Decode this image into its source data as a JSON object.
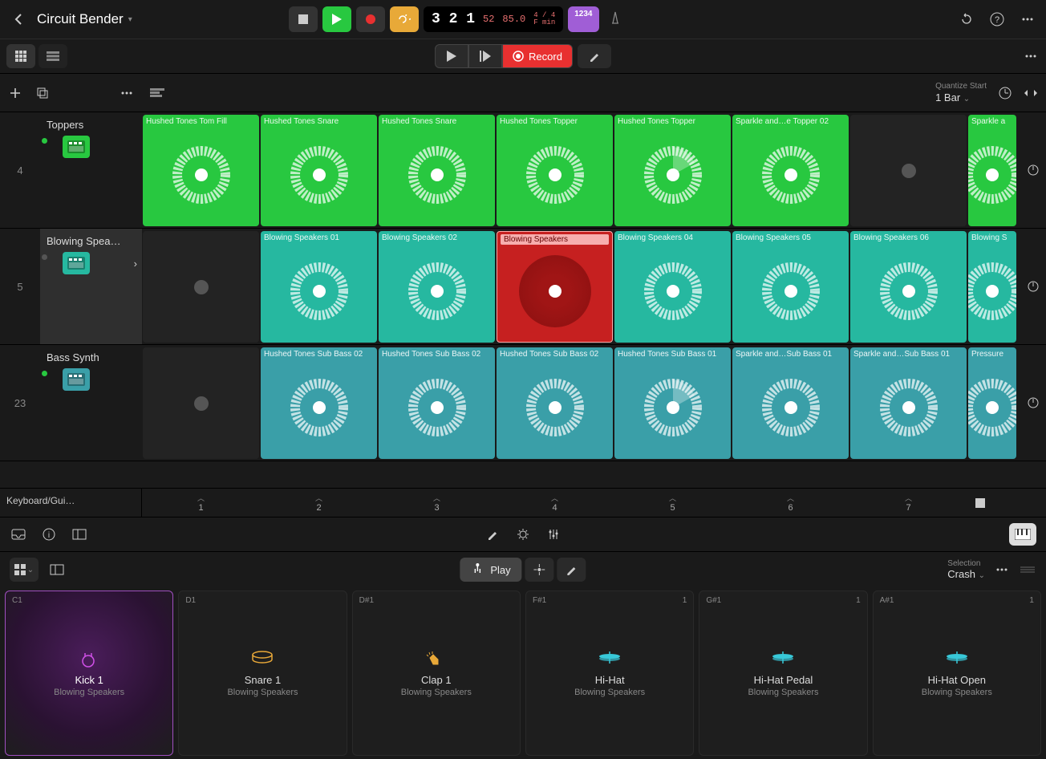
{
  "project": {
    "title": "Circuit Bender"
  },
  "transport": {
    "position": "3 2 1",
    "subpos": "52",
    "tempo": "85.0",
    "timesig": "4 / 4",
    "key": "F min",
    "bars_badge": "1234"
  },
  "secondbar": {
    "record_label": "Record"
  },
  "quantize": {
    "label": "Quantize Start",
    "value": "1 Bar"
  },
  "tracks": [
    {
      "num": "4",
      "name": "Toppers",
      "color": "#28c840",
      "dot": "#28c840",
      "icon_bg": "#28c840",
      "selected": false
    },
    {
      "num": "5",
      "name": "Blowing Spea…",
      "color": "#26b8a0",
      "dot": "#555",
      "icon_bg": "#26b8a0",
      "selected": true,
      "has_arrow": true
    },
    {
      "num": "23",
      "name": "Bass Synth",
      "color": "#3a9fa8",
      "dot": "#28c840",
      "icon_bg": "#3a9fa8",
      "selected": false
    }
  ],
  "keyboard_row": {
    "name": "Keyboard/Gui…"
  },
  "grid_colors": {
    "green": "#28c840",
    "teal": "#26b8a0",
    "teal2": "#3a9fa8",
    "red": "#c62020"
  },
  "rows": [
    {
      "cells": [
        {
          "type": "clip",
          "color": "#28c840",
          "label": "Hushed Tones Tom Fill"
        },
        {
          "type": "clip",
          "color": "#28c840",
          "label": "Hushed Tones Snare"
        },
        {
          "type": "clip",
          "color": "#28c840",
          "label": "Hushed Tones Snare"
        },
        {
          "type": "clip",
          "color": "#28c840",
          "label": "Hushed Tones Topper"
        },
        {
          "type": "clip",
          "color": "#28c840",
          "label": "Hushed Tones Topper",
          "playing": true
        },
        {
          "type": "clip",
          "color": "#28c840",
          "label": "Sparkle and…e Topper 02"
        },
        {
          "type": "empty"
        },
        {
          "type": "clip",
          "color": "#28c840",
          "label": "Sparkle a",
          "partial": true
        }
      ]
    },
    {
      "cells": [
        {
          "type": "empty"
        },
        {
          "type": "clip",
          "color": "#26b8a0",
          "label": "Blowing Speakers 01"
        },
        {
          "type": "clip",
          "color": "#26b8a0",
          "label": "Blowing Speakers 02"
        },
        {
          "type": "recording",
          "label": "Blowing Speakers"
        },
        {
          "type": "clip",
          "color": "#26b8a0",
          "label": "Blowing Speakers 04"
        },
        {
          "type": "clip",
          "color": "#26b8a0",
          "label": "Blowing Speakers 05"
        },
        {
          "type": "clip",
          "color": "#26b8a0",
          "label": "Blowing Speakers 06"
        },
        {
          "type": "clip",
          "color": "#26b8a0",
          "label": "Blowing S",
          "partial": true
        }
      ]
    },
    {
      "cells": [
        {
          "type": "empty"
        },
        {
          "type": "clip",
          "color": "#3a9fa8",
          "label": "Hushed Tones Sub Bass 02"
        },
        {
          "type": "clip",
          "color": "#3a9fa8",
          "label": "Hushed Tones Sub Bass 02"
        },
        {
          "type": "clip",
          "color": "#3a9fa8",
          "label": "Hushed Tones Sub Bass 02"
        },
        {
          "type": "clip",
          "color": "#3a9fa8",
          "label": "Hushed Tones Sub Bass 01",
          "playing": true
        },
        {
          "type": "clip",
          "color": "#3a9fa8",
          "label": "Sparkle and…Sub Bass 01"
        },
        {
          "type": "clip",
          "color": "#3a9fa8",
          "label": "Sparkle and…Sub Bass 01"
        },
        {
          "type": "clip",
          "color": "#3a9fa8",
          "label": "Pressure",
          "partial": true
        }
      ]
    }
  ],
  "scenes": [
    "1",
    "2",
    "3",
    "4",
    "5",
    "6",
    "7"
  ],
  "pads_toolbar": {
    "play_label": "Play",
    "selection_label": "Selection",
    "selection_value": "Crash"
  },
  "pads": [
    {
      "note": "C1",
      "name": "Kick 1",
      "sub": "Blowing Speakers",
      "color": "#d050e8",
      "selected": true,
      "icon": "kick"
    },
    {
      "note": "D1",
      "name": "Snare 1",
      "sub": "Blowing Speakers",
      "color": "#e8a838",
      "icon": "snare"
    },
    {
      "note": "D#1",
      "name": "Clap 1",
      "sub": "Blowing Speakers",
      "color": "#e8a838",
      "icon": "clap"
    },
    {
      "note": "F#1",
      "badge": "1",
      "name": "Hi-Hat",
      "sub": "Blowing Speakers",
      "color": "#38c8d8",
      "icon": "hihat"
    },
    {
      "note": "G#1",
      "badge": "1",
      "name": "Hi-Hat Pedal",
      "sub": "Blowing Speakers",
      "color": "#38c8d8",
      "icon": "hihat"
    },
    {
      "note": "A#1",
      "badge": "1",
      "name": "Hi-Hat Open",
      "sub": "Blowing Speakers",
      "color": "#38c8d8",
      "icon": "hihat"
    }
  ]
}
